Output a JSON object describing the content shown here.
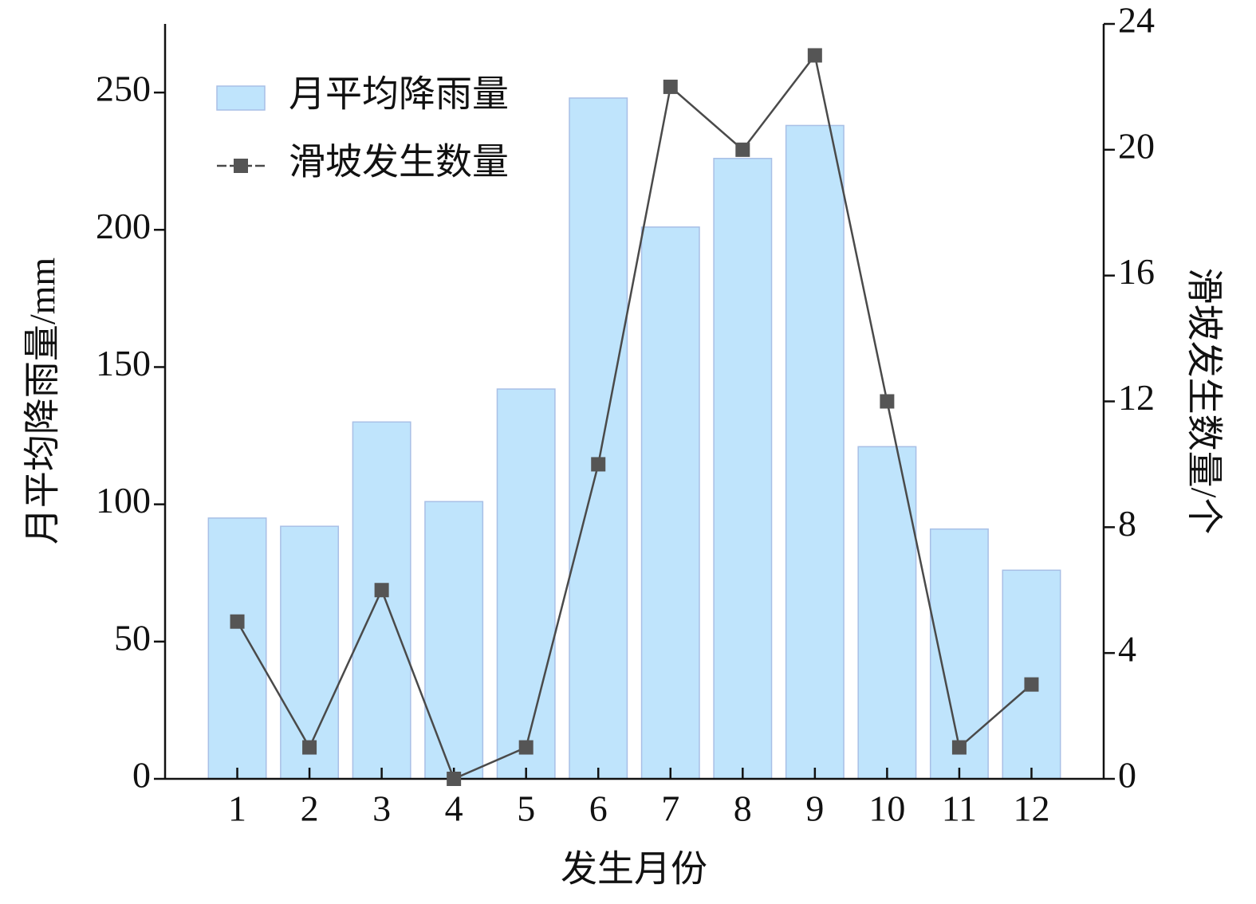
{
  "chart_data": {
    "type": "bar",
    "x_label": "发生月份",
    "y_label": "月平均降雨量/mm",
    "y2_label": "滑坡发生数量/个",
    "categories": [
      "1",
      "2",
      "3",
      "4",
      "5",
      "6",
      "7",
      "8",
      "9",
      "10",
      "11",
      "12"
    ],
    "series": [
      {
        "name": "月平均降雨量",
        "type": "bar",
        "color": "#bfe4fc",
        "values": [
          95,
          92,
          130,
          101,
          142,
          248,
          201,
          226,
          238,
          121,
          91,
          76
        ]
      },
      {
        "name": "滑坡发生数量",
        "type": "line",
        "color": "#4a4a4a",
        "axis": "y2",
        "values": [
          5,
          1,
          6,
          0,
          1,
          10,
          22,
          20,
          23,
          12,
          1,
          3
        ]
      }
    ],
    "ylim": [
      0,
      275
    ],
    "yticks": [
      0,
      50,
      100,
      150,
      200,
      250
    ],
    "y2lim": [
      0,
      24
    ],
    "y2ticks": [
      0,
      4,
      8,
      12,
      16,
      20,
      24
    ],
    "legend": "upper left"
  }
}
